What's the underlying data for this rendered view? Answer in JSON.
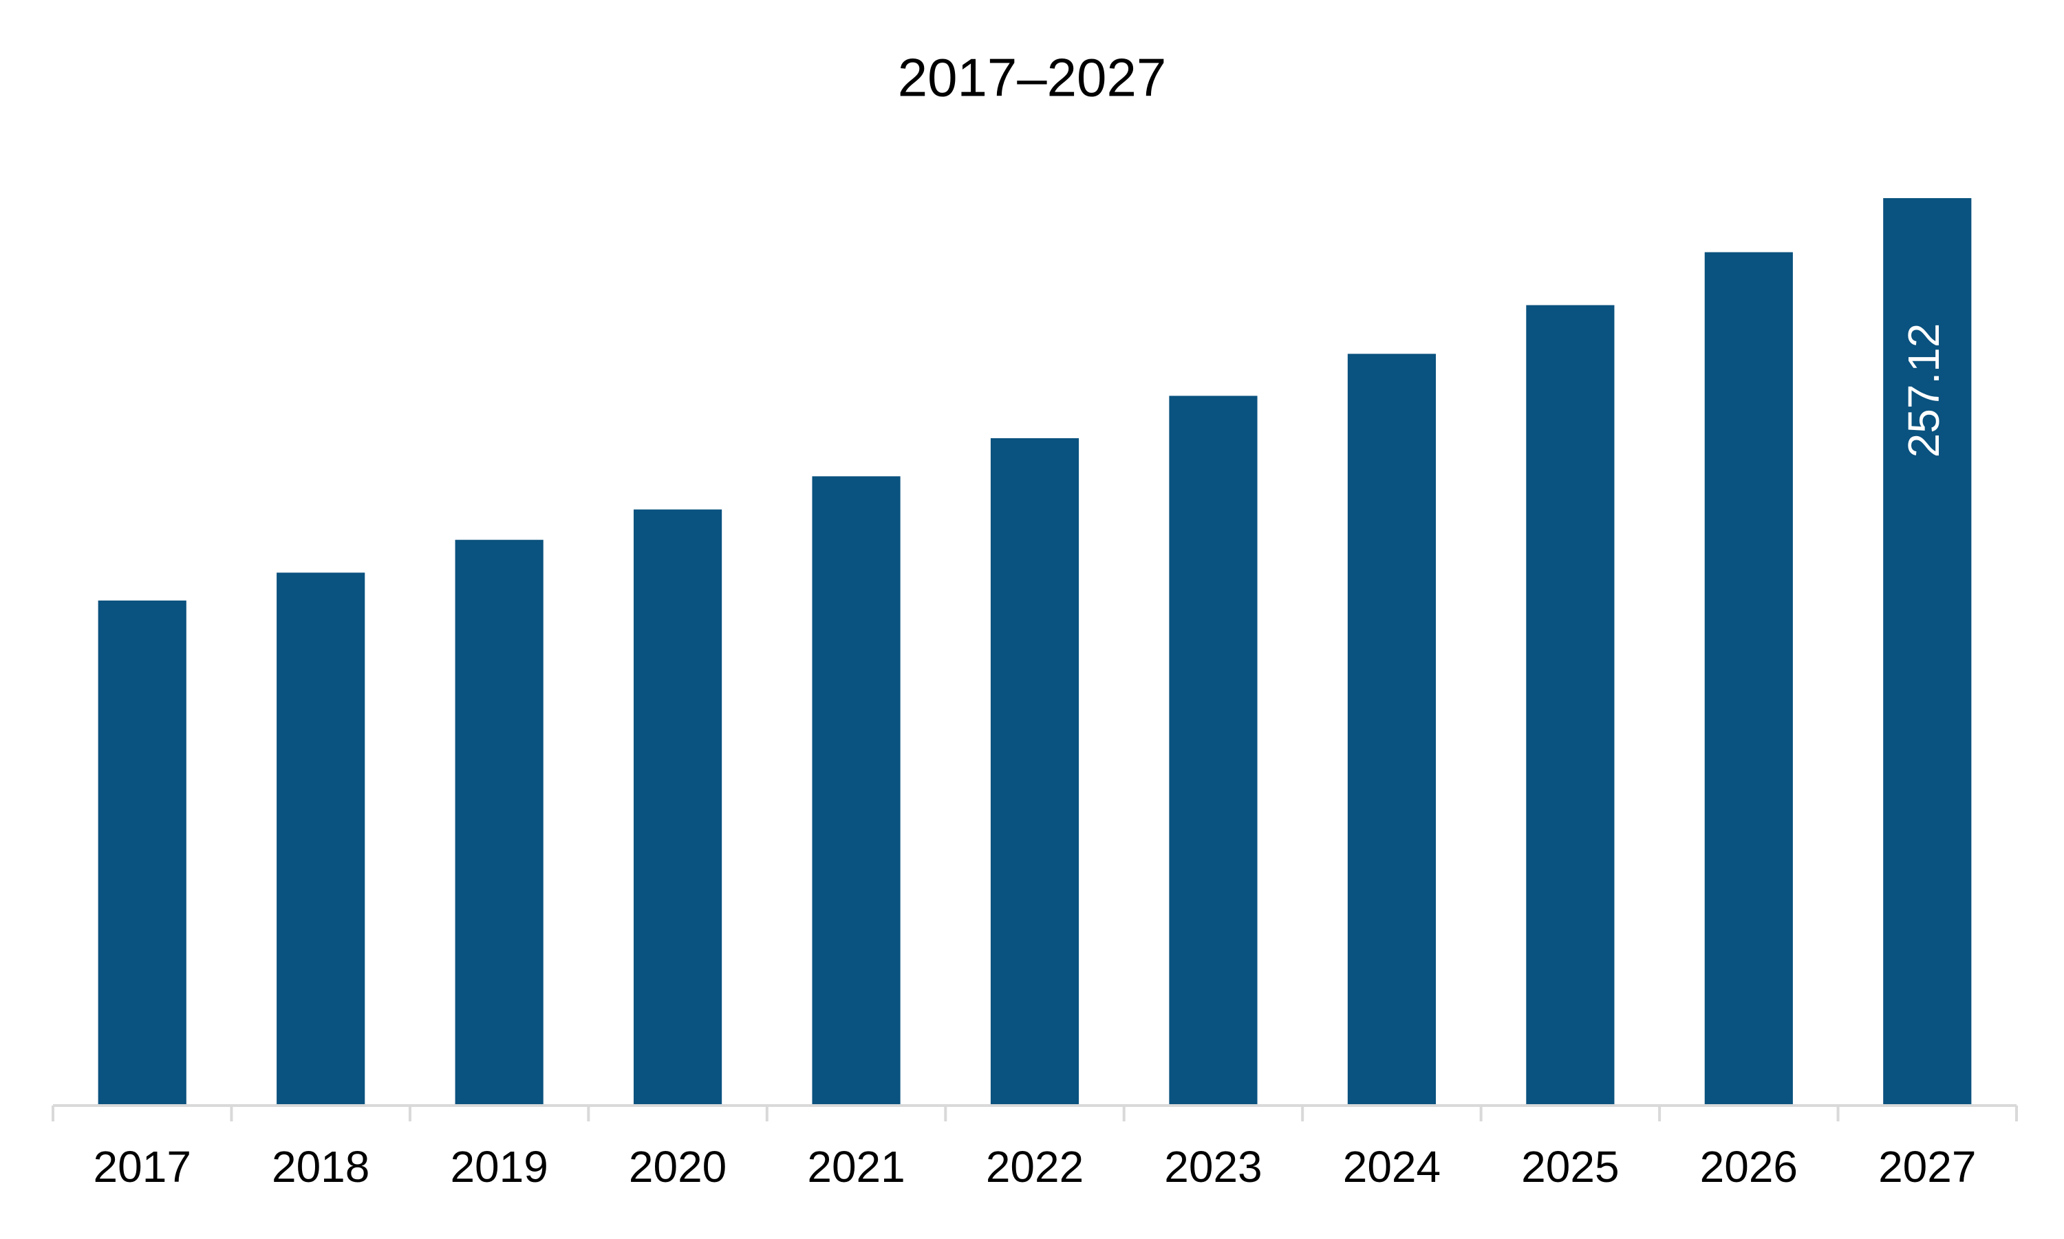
{
  "chart_data": {
    "type": "bar",
    "title": "2017–2027",
    "categories": [
      "2017",
      "2018",
      "2019",
      "2020",
      "2021",
      "2022",
      "2023",
      "2024",
      "2025",
      "2026",
      "2027"
    ],
    "values": [
      143.1,
      151.0,
      160.3,
      168.9,
      178.3,
      189.1,
      201.1,
      213.0,
      226.8,
      241.8,
      257.12
    ],
    "value_labels": [
      null,
      null,
      null,
      null,
      null,
      null,
      null,
      null,
      null,
      null,
      "257.12"
    ],
    "color": "#0a527f",
    "grid": false
  }
}
